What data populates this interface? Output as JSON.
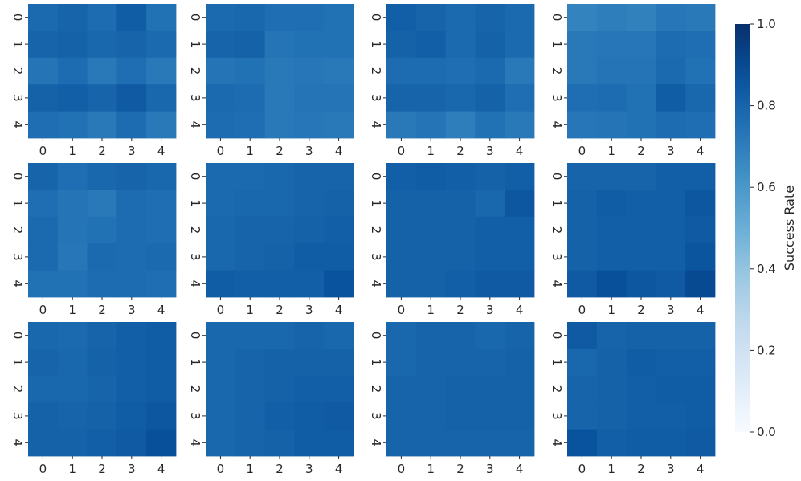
{
  "chart_data": {
    "type": "heatmap",
    "grid": {
      "rows": 3,
      "cols": 4
    },
    "x_ticks": [
      "0",
      "1",
      "2",
      "3",
      "4"
    ],
    "y_ticks": [
      "0",
      "1",
      "2",
      "3",
      "4"
    ],
    "colormap": "Blues",
    "vmin": 0.0,
    "vmax": 1.0,
    "colorbar": {
      "label": "Success Rate",
      "ticks": [
        "0.0",
        "0.2",
        "0.4",
        "0.6",
        "0.8",
        "1.0"
      ],
      "tick_values": [
        0.0,
        0.2,
        0.4,
        0.6,
        0.8,
        1.0
      ],
      "placement": "right"
    },
    "panels": [
      {
        "values": [
          [
            0.78,
            0.8,
            0.77,
            0.83,
            0.75
          ],
          [
            0.8,
            0.81,
            0.79,
            0.8,
            0.78
          ],
          [
            0.74,
            0.77,
            0.72,
            0.76,
            0.72
          ],
          [
            0.81,
            0.82,
            0.8,
            0.84,
            0.79
          ],
          [
            0.76,
            0.75,
            0.72,
            0.77,
            0.72
          ]
        ]
      },
      {
        "values": [
          [
            0.78,
            0.79,
            0.76,
            0.76,
            0.75
          ],
          [
            0.8,
            0.81,
            0.74,
            0.75,
            0.75
          ],
          [
            0.74,
            0.75,
            0.72,
            0.73,
            0.72
          ],
          [
            0.78,
            0.77,
            0.72,
            0.74,
            0.74
          ],
          [
            0.77,
            0.76,
            0.72,
            0.73,
            0.72
          ]
        ]
      },
      {
        "values": [
          [
            0.82,
            0.8,
            0.78,
            0.8,
            0.78
          ],
          [
            0.81,
            0.82,
            0.78,
            0.81,
            0.78
          ],
          [
            0.77,
            0.77,
            0.76,
            0.78,
            0.72
          ],
          [
            0.8,
            0.8,
            0.79,
            0.81,
            0.76
          ],
          [
            0.72,
            0.74,
            0.7,
            0.75,
            0.72
          ]
        ]
      },
      {
        "values": [
          [
            0.68,
            0.7,
            0.69,
            0.73,
            0.72
          ],
          [
            0.72,
            0.73,
            0.73,
            0.77,
            0.76
          ],
          [
            0.72,
            0.74,
            0.74,
            0.78,
            0.75
          ],
          [
            0.76,
            0.77,
            0.75,
            0.83,
            0.79
          ],
          [
            0.73,
            0.74,
            0.75,
            0.77,
            0.76
          ]
        ]
      },
      {
        "values": [
          [
            0.8,
            0.76,
            0.79,
            0.8,
            0.79
          ],
          [
            0.76,
            0.74,
            0.72,
            0.77,
            0.76
          ],
          [
            0.78,
            0.74,
            0.75,
            0.77,
            0.76
          ],
          [
            0.78,
            0.73,
            0.78,
            0.77,
            0.78
          ],
          [
            0.75,
            0.75,
            0.77,
            0.77,
            0.76
          ]
        ]
      },
      {
        "values": [
          [
            0.78,
            0.78,
            0.79,
            0.8,
            0.8
          ],
          [
            0.78,
            0.79,
            0.79,
            0.8,
            0.81
          ],
          [
            0.79,
            0.8,
            0.8,
            0.81,
            0.82
          ],
          [
            0.79,
            0.8,
            0.81,
            0.83,
            0.83
          ],
          [
            0.83,
            0.82,
            0.82,
            0.82,
            0.87
          ]
        ]
      },
      {
        "values": [
          [
            0.82,
            0.83,
            0.82,
            0.81,
            0.82
          ],
          [
            0.81,
            0.81,
            0.81,
            0.79,
            0.85
          ],
          [
            0.81,
            0.81,
            0.81,
            0.82,
            0.82
          ],
          [
            0.81,
            0.81,
            0.81,
            0.82,
            0.82
          ],
          [
            0.81,
            0.81,
            0.82,
            0.84,
            0.84
          ]
        ]
      },
      {
        "values": [
          [
            0.8,
            0.8,
            0.8,
            0.82,
            0.82
          ],
          [
            0.81,
            0.83,
            0.82,
            0.82,
            0.85
          ],
          [
            0.81,
            0.82,
            0.82,
            0.82,
            0.84
          ],
          [
            0.81,
            0.82,
            0.82,
            0.82,
            0.86
          ],
          [
            0.84,
            0.88,
            0.85,
            0.84,
            0.9
          ]
        ]
      },
      {
        "values": [
          [
            0.79,
            0.78,
            0.8,
            0.82,
            0.83
          ],
          [
            0.8,
            0.79,
            0.81,
            0.82,
            0.83
          ],
          [
            0.79,
            0.79,
            0.8,
            0.82,
            0.83
          ],
          [
            0.81,
            0.8,
            0.81,
            0.83,
            0.85
          ],
          [
            0.81,
            0.81,
            0.82,
            0.84,
            0.88
          ]
        ]
      },
      {
        "values": [
          [
            0.79,
            0.79,
            0.79,
            0.8,
            0.79
          ],
          [
            0.79,
            0.8,
            0.81,
            0.81,
            0.81
          ],
          [
            0.79,
            0.8,
            0.81,
            0.82,
            0.82
          ],
          [
            0.79,
            0.8,
            0.82,
            0.83,
            0.84
          ],
          [
            0.79,
            0.8,
            0.81,
            0.83,
            0.83
          ]
        ]
      },
      {
        "values": [
          [
            0.79,
            0.8,
            0.8,
            0.79,
            0.8
          ],
          [
            0.79,
            0.8,
            0.8,
            0.8,
            0.81
          ],
          [
            0.8,
            0.8,
            0.81,
            0.81,
            0.81
          ],
          [
            0.8,
            0.8,
            0.81,
            0.81,
            0.81
          ],
          [
            0.8,
            0.8,
            0.8,
            0.8,
            0.8
          ]
        ]
      },
      {
        "values": [
          [
            0.84,
            0.8,
            0.81,
            0.81,
            0.81
          ],
          [
            0.79,
            0.81,
            0.83,
            0.82,
            0.82
          ],
          [
            0.8,
            0.81,
            0.82,
            0.83,
            0.83
          ],
          [
            0.8,
            0.81,
            0.82,
            0.82,
            0.83
          ],
          [
            0.87,
            0.82,
            0.83,
            0.83,
            0.84
          ]
        ]
      }
    ]
  }
}
